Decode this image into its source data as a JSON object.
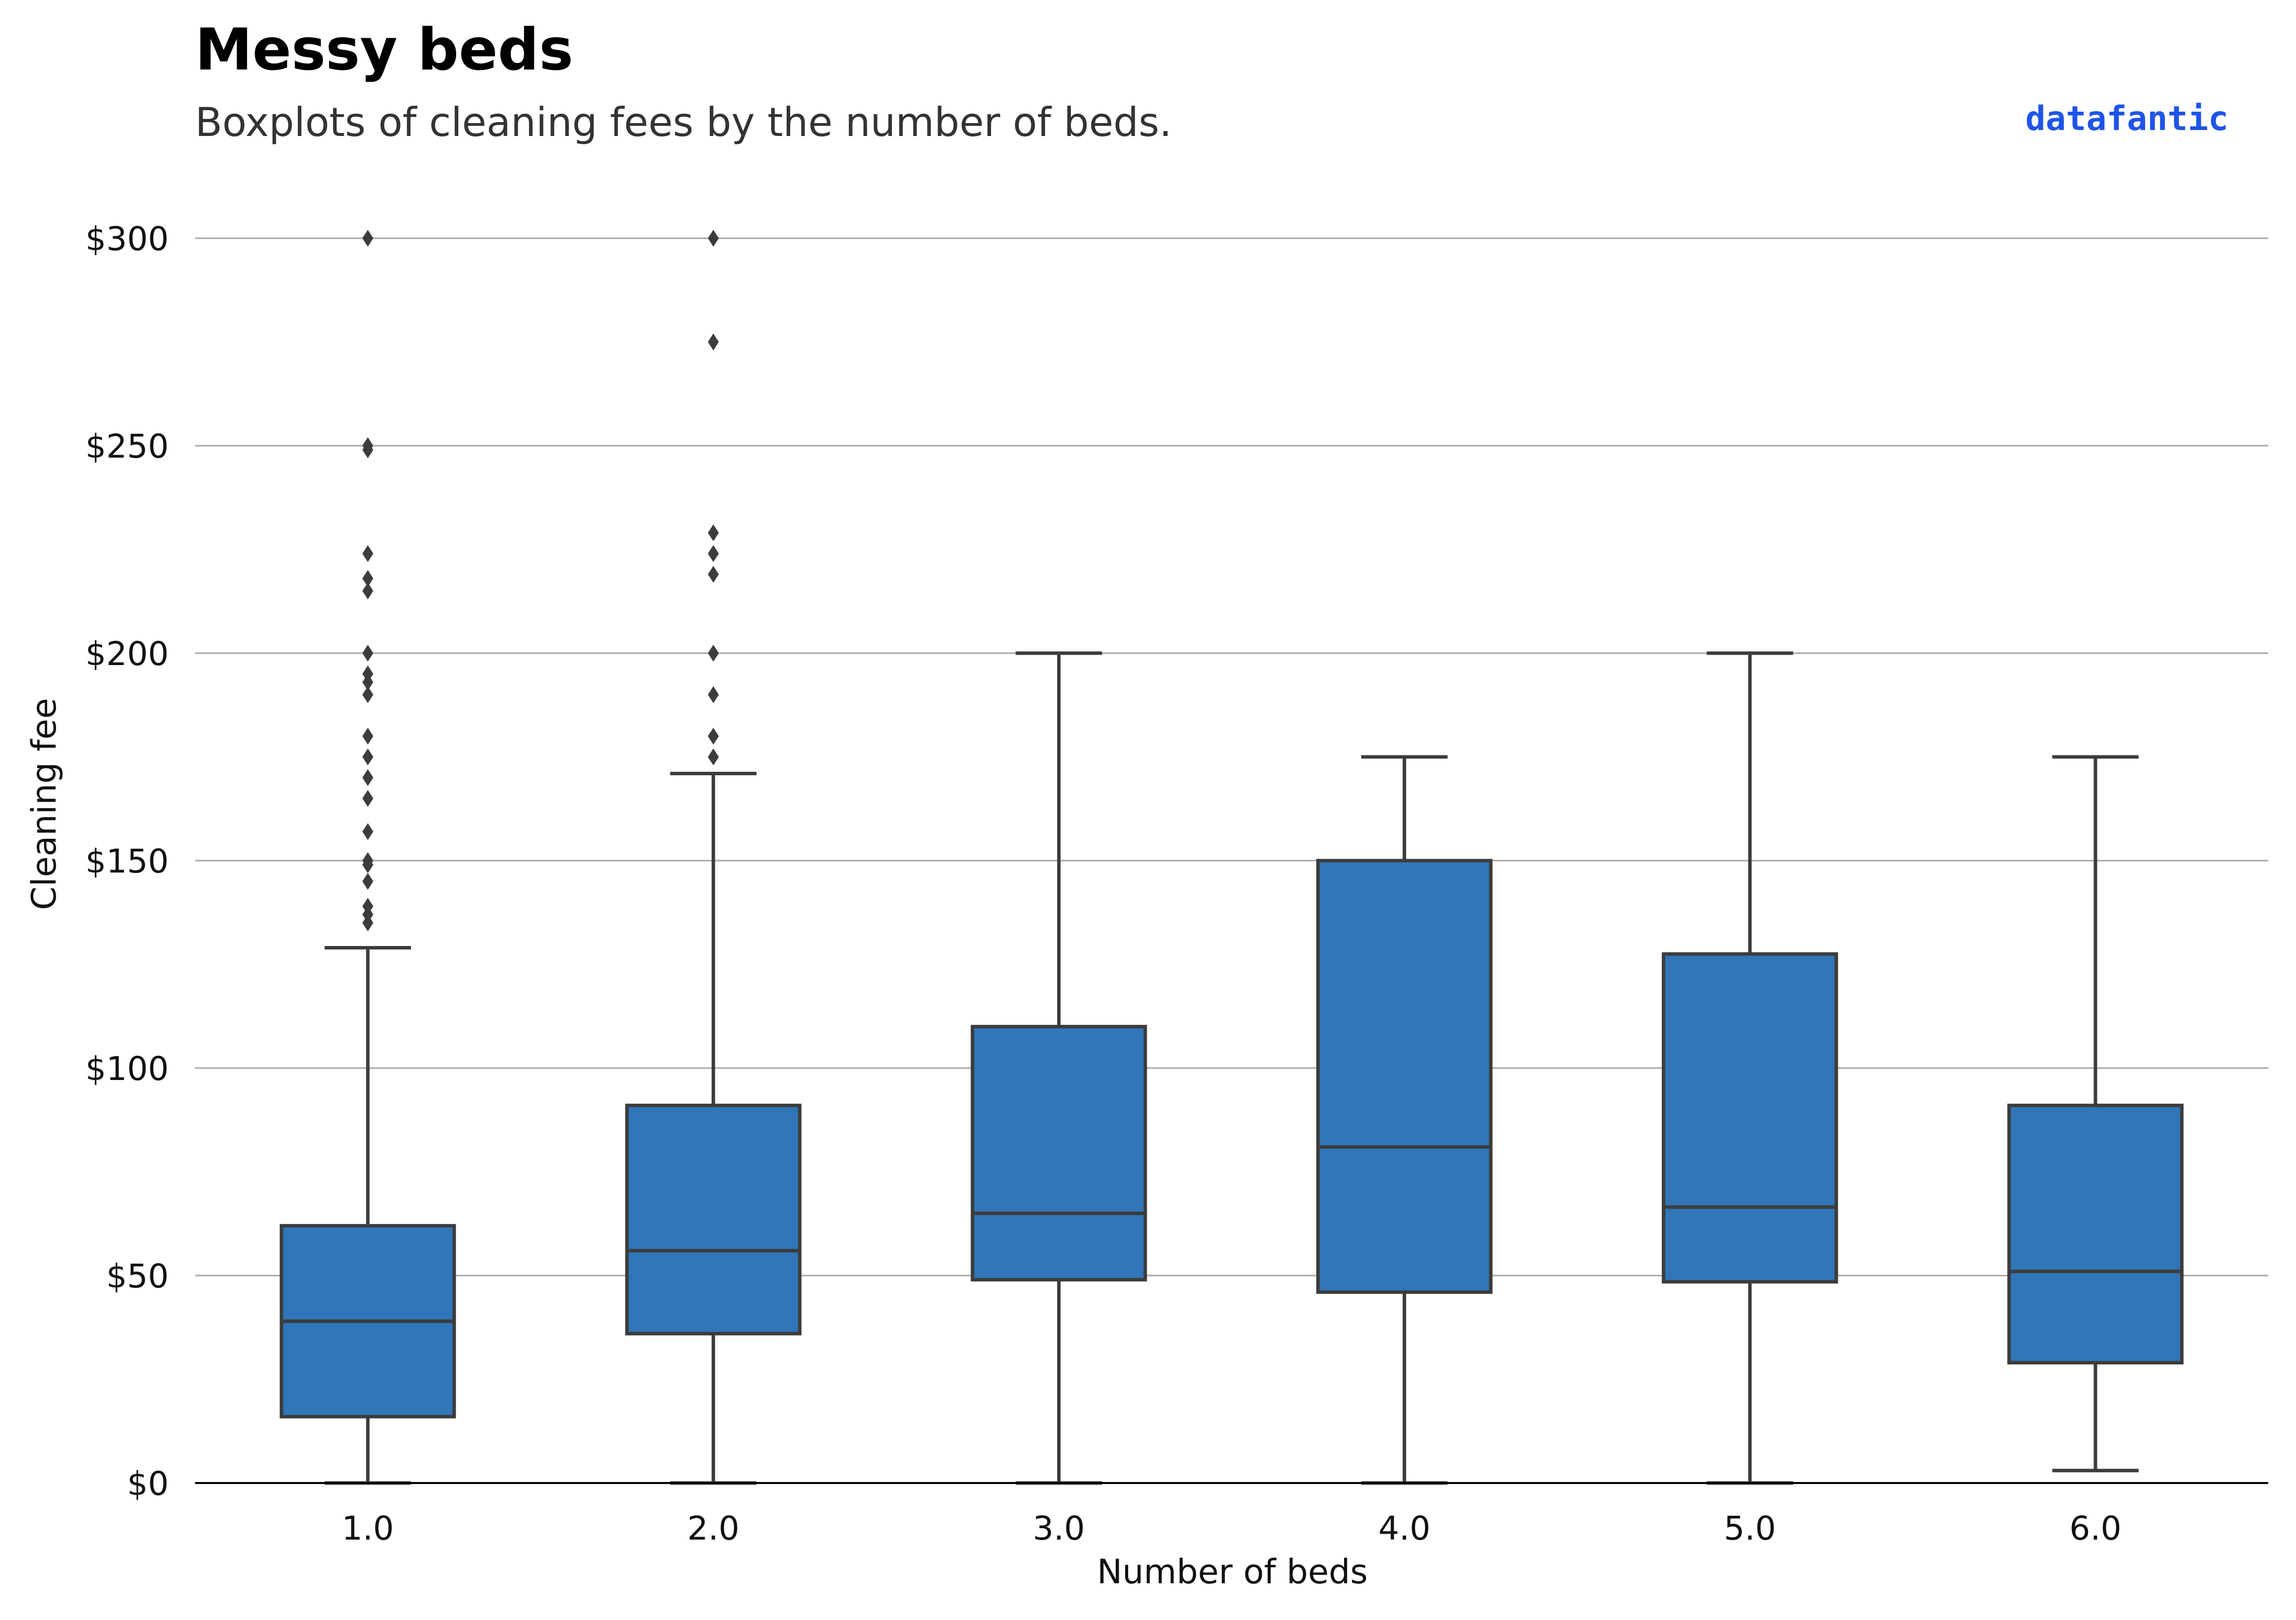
{
  "colors": {
    "box_fill": "#3076b8",
    "box_stroke": "#3c3c3c",
    "grid": "#a6a6a6",
    "axis": "#000000",
    "title": "#000000",
    "subtitle": "#333333",
    "brand": "#1f54e8",
    "text": "#111111"
  },
  "chart_data": {
    "type": "box",
    "title": "Messy beds",
    "subtitle": "Boxplots of cleaning fees by the number of beds.",
    "brand": "datafantic",
    "xlabel": "Number of beds",
    "ylabel": "Cleaning fee",
    "ylim": [
      0,
      300
    ],
    "y_ticks": [
      0,
      50,
      100,
      150,
      200,
      250,
      300
    ],
    "y_tick_labels": [
      "$0",
      "$50",
      "$100",
      "$150",
      "$200",
      "$250",
      "$300"
    ],
    "grid": "horizontal",
    "categories": [
      "1.0",
      "2.0",
      "3.0",
      "4.0",
      "5.0",
      "6.0"
    ],
    "boxes": [
      {
        "category": "1.0",
        "whisker_low": 0,
        "q1": 16,
        "median": 39,
        "q3": 62,
        "whisker_high": 129,
        "outliers": [
          135,
          137,
          139,
          145,
          149,
          150,
          157,
          165,
          170,
          175,
          180,
          190,
          193,
          195,
          200,
          215,
          218,
          224,
          249,
          250,
          300
        ]
      },
      {
        "category": "2.0",
        "whisker_low": 0,
        "q1": 36,
        "median": 56,
        "q3": 91,
        "whisker_high": 171,
        "outliers": [
          175,
          180,
          190,
          200,
          219,
          224,
          229,
          275,
          300
        ]
      },
      {
        "category": "3.0",
        "whisker_low": 0,
        "q1": 49,
        "median": 65,
        "q3": 110,
        "whisker_high": 200,
        "outliers": []
      },
      {
        "category": "4.0",
        "whisker_low": 0,
        "q1": 46,
        "median": 81,
        "q3": 150,
        "whisker_high": 175,
        "outliers": []
      },
      {
        "category": "5.0",
        "whisker_low": 0,
        "q1": 48.5,
        "median": 66.5,
        "q3": 127.5,
        "whisker_high": 200,
        "outliers": []
      },
      {
        "category": "6.0",
        "whisker_low": 3,
        "q1": 29,
        "median": 51,
        "q3": 91,
        "whisker_high": 175,
        "outliers": []
      }
    ]
  }
}
